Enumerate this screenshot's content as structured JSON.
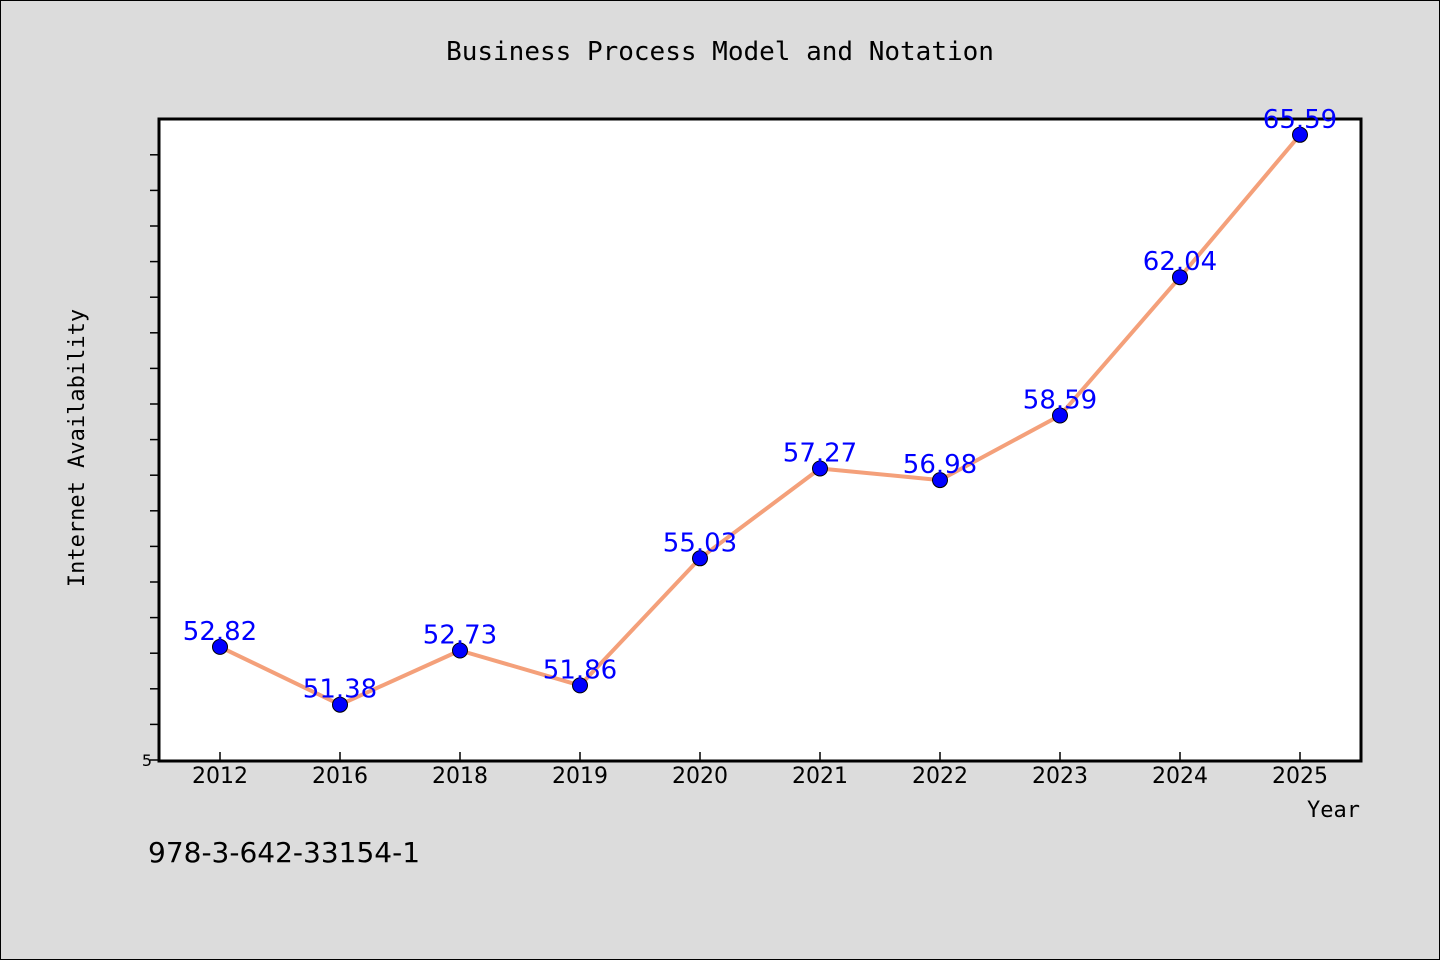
{
  "chart_data": {
    "type": "line",
    "title": "Business Process Model and Notation",
    "xlabel": "Year",
    "ylabel": "Internet Availability",
    "categories": [
      "2012",
      "2016",
      "2018",
      "2019",
      "2020",
      "2021",
      "2022",
      "2023",
      "2024",
      "2025"
    ],
    "series": [
      {
        "values": [
          52.82,
          51.38,
          52.73,
          51.86,
          55.03,
          57.27,
          56.98,
          58.59,
          62.04,
          65.59
        ]
      }
    ],
    "data_labels": [
      "52.82",
      "51.38",
      "52.73",
      "51.86",
      "55.03",
      "57.27",
      "56.98",
      "58.59",
      "62.04",
      "65.59"
    ],
    "y_min_label": "5",
    "ylim": [
      50.0,
      65.96
    ],
    "grid": false,
    "legend": "none",
    "colors": {
      "line": "#f4a07a",
      "marker": "#0000ff",
      "data_label": "#0000ff",
      "plot_background": "#ffffff",
      "figure_background": "#dcdcdc"
    }
  },
  "footnote": "978-3-642-33154-1"
}
